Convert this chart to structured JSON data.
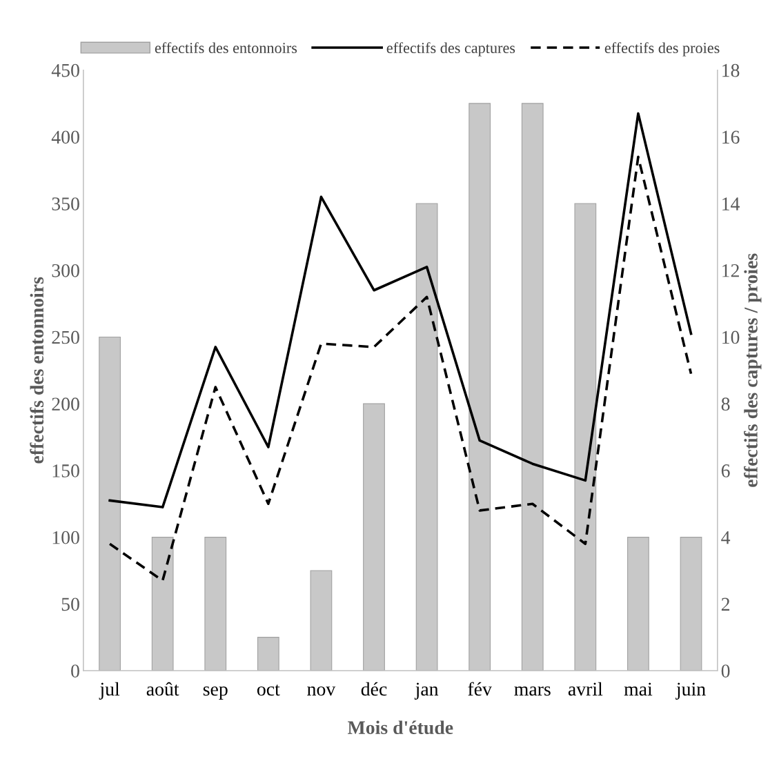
{
  "chart_data": {
    "type": "bar",
    "xlabel": "Mois d'étude",
    "ylabel": "effectifs des entonnoirs",
    "y2label": "effectifs des captures / proies",
    "categories": [
      "jul",
      "août",
      "sep",
      "oct",
      "nov",
      "déc",
      "jan",
      "fév",
      "mars",
      "avril",
      "mai",
      "juin"
    ],
    "series": [
      {
        "name": "effectifs des entonnoirs",
        "color": "#c8c8c8",
        "values": [
          250,
          100,
          100,
          25,
          75,
          200,
          350,
          425,
          425,
          350,
          100,
          100
        ]
      },
      {
        "name": "effectifs des captures",
        "type": "line",
        "axis": "y2",
        "color": "#000000",
        "line_style": "solid",
        "values": [
          5.1,
          4.9,
          9.7,
          6.7,
          14.2,
          11.4,
          12.1,
          6.9,
          6.2,
          5.7,
          16.7,
          10.1
        ]
      },
      {
        "name": "effectifs des proies",
        "type": "line",
        "axis": "y2",
        "color": "#000000",
        "line_style": "dashed",
        "values": [
          3.8,
          2.7,
          8.5,
          5.0,
          9.8,
          9.7,
          11.2,
          4.8,
          5.0,
          3.8,
          15.4,
          8.9
        ]
      }
    ],
    "ylim": [
      0,
      450
    ],
    "yticks": [
      0,
      50,
      100,
      150,
      200,
      250,
      300,
      350,
      400,
      450
    ],
    "y2lim": [
      0,
      18
    ],
    "y2ticks": [
      0,
      2,
      4,
      6,
      8,
      10,
      12,
      14,
      16,
      18
    ],
    "grid": false,
    "legend": "top"
  }
}
